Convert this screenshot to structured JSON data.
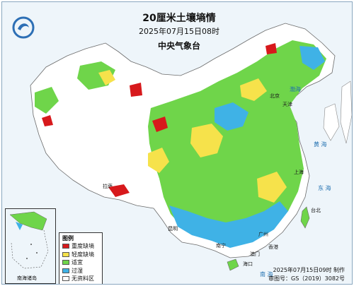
{
  "header": {
    "title": "20厘米土壤墒情",
    "datetime": "2025年07月15日08时",
    "agency": "中央气象台"
  },
  "colors": {
    "severe_shortage": "#d7191c",
    "mild_shortage": "#f6e24b",
    "suitable": "#6fd54a",
    "excessive": "#3fb2e6",
    "no_data": "#ffffff",
    "sea": "#eef5fa"
  },
  "legend": {
    "title": "图例",
    "items": [
      {
        "label": "重度缺墒",
        "color": "#d7191c"
      },
      {
        "label": "轻度缺墒",
        "color": "#f6e24b"
      },
      {
        "label": "适宜",
        "color": "#6fd54a"
      },
      {
        "label": "过湿",
        "color": "#3fb2e6"
      },
      {
        "label": "无资料区",
        "color": "#ffffff"
      }
    ]
  },
  "labels": {
    "beijing": "北京",
    "tianjin": "天津",
    "shanghai": "上海",
    "taipei": "台北",
    "hongkong": "香港",
    "macao": "澳门",
    "haikou": "海口",
    "nanning": "南宁",
    "guangzhou": "广州",
    "kunming": "昆明",
    "lhasa": "拉萨",
    "east_sea": "东 海",
    "yellow_sea": "黄 海",
    "bohai": "渤海",
    "south_sea": "南 海"
  },
  "inset": {
    "label": "南海诸岛"
  },
  "footer": {
    "made": "2025年07月15日09时 制作",
    "approval": "审图号：GS（2019）3082号"
  }
}
